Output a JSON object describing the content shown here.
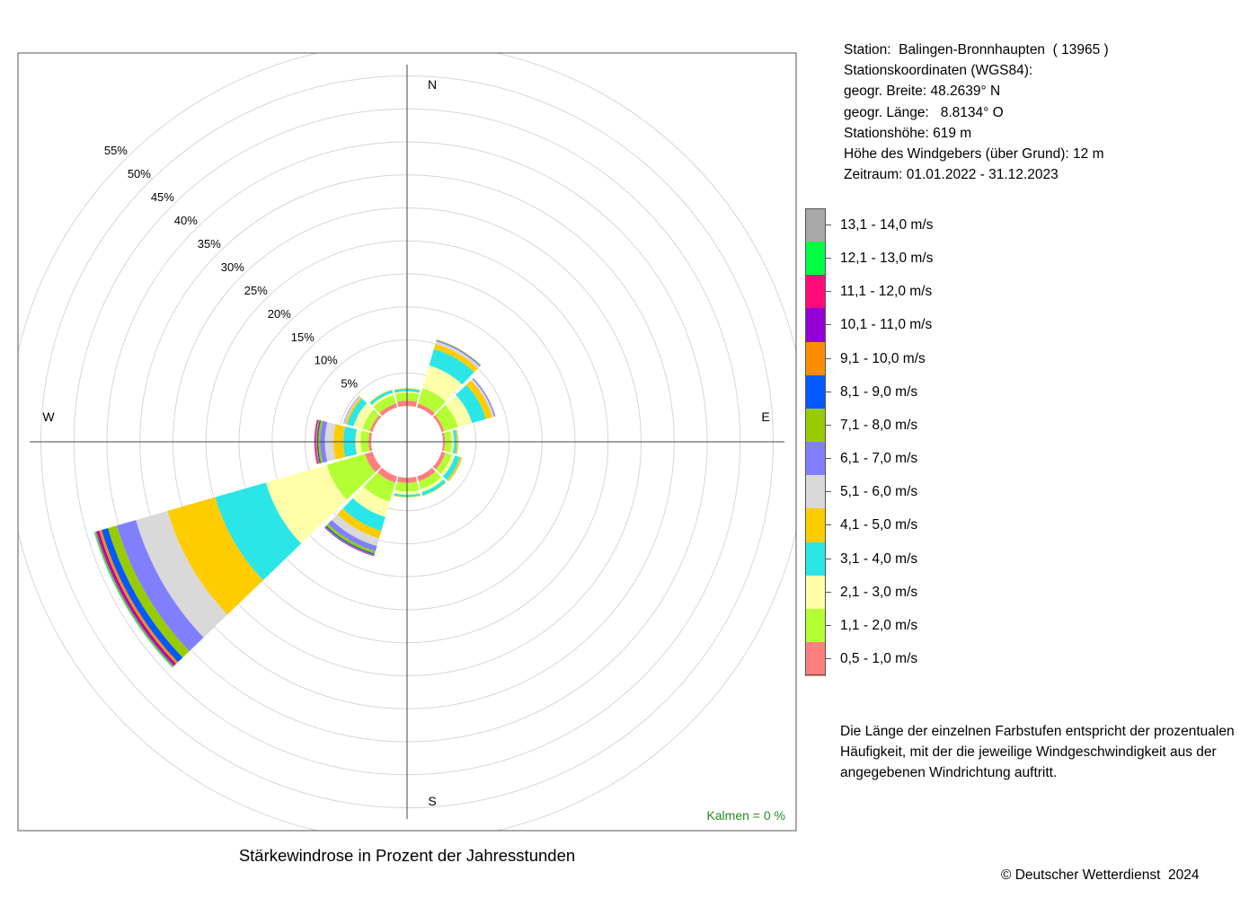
{
  "title": "Stärkewindrose in Prozent der Jahresstunden",
  "station_info": [
    "Station:  Balingen-Bronnhaupten  ( 13965 )",
    "Stationskoordinaten (WGS84):",
    "geogr. Breite: 48.2639° N",
    "geogr. Länge:   8.8134° O",
    "Stationshöhe: 619 m",
    "Höhe des Windgebers (über Grund): 12 m",
    "Zeitraum: 01.01.2022 - 31.12.2023"
  ],
  "note": "Die Länge der einzelnen Farbstufen entspricht der prozentualen Häufigkeit, mit der die jeweilige Windgeschwindigkeit aus der angegebenen Windrichtung auftritt.",
  "copyright": "© Deutscher Wetterdienst  2024",
  "calm_label": "Kalmen  =  0 %",
  "calm_color": "#228b22",
  "legend": [
    {
      "label": "13,1 - 14,0 m/s",
      "color": "#a8a8a8"
    },
    {
      "label": "12,1 - 13,0 m/s",
      "color": "#00ff40"
    },
    {
      "label": "11,1 - 12,0 m/s",
      "color": "#ff0a78"
    },
    {
      "label": "10,1 - 11,0 m/s",
      "color": "#9400d3"
    },
    {
      "label": "9,1 - 10,0 m/s",
      "color": "#ff8c00"
    },
    {
      "label": "8,1 - 9,0 m/s",
      "color": "#005aff"
    },
    {
      "label": "7,1 - 8,0 m/s",
      "color": "#99cc00"
    },
    {
      "label": "6,1 - 7,0 m/s",
      "color": "#8080ff"
    },
    {
      "label": "5,1 - 6,0 m/s",
      "color": "#d9d9d9"
    },
    {
      "label": "4,1 - 5,0 m/s",
      "color": "#ffcc00"
    },
    {
      "label": "3,1 - 4,0 m/s",
      "color": "#2ae6e6"
    },
    {
      "label": "2,1 - 3,0 m/s",
      "color": "#ffffaa"
    },
    {
      "label": "1,1 - 2,0 m/s",
      "color": "#b3ff33"
    },
    {
      "label": "0,5 - 1,0 m/s",
      "color": "#ff7f7f"
    }
  ],
  "chart_data": {
    "type": "wind-rose",
    "title": "Stärkewindrose in Prozent der Jahresstunden",
    "unit": "%",
    "radial_max": 55,
    "ring_step": 5,
    "ring_labels": [
      "5%",
      "10%",
      "15%",
      "20%",
      "25%",
      "30%",
      "35%",
      "40%",
      "45%",
      "50%",
      "55%"
    ],
    "cardinal_labels": {
      "N": "N",
      "E": "E",
      "S": "S",
      "W": "W"
    },
    "calm_percent": 0,
    "speed_classes": [
      "0,5 - 1,0 m/s",
      "1,1 - 2,0 m/s",
      "2,1 - 3,0 m/s",
      "3,1 - 4,0 m/s",
      "4,1 - 5,0 m/s",
      "5,1 - 6,0 m/s",
      "6,1 - 7,0 m/s",
      "7,1 - 8,0 m/s",
      "8,1 - 9,0 m/s",
      "9,1 - 10,0 m/s",
      "10,1 - 11,0 m/s",
      "11,1 - 12,0 m/s",
      "12,1 - 13,0 m/s",
      "13,1 - 14,0 m/s"
    ],
    "sector_width_deg": 30,
    "sectors": [
      {
        "direction": 0,
        "values": [
          0.8,
          1.2,
          0.2,
          0.4,
          0.1,
          0,
          0,
          0,
          0,
          0,
          0,
          0,
          0,
          0
        ]
      },
      {
        "direction": 30,
        "values": [
          0.6,
          2.4,
          3.6,
          2.6,
          0.8,
          0.4,
          0.2,
          0.1,
          0,
          0,
          0,
          0,
          0,
          0
        ]
      },
      {
        "direction": 60,
        "values": [
          0.4,
          2.2,
          2.2,
          2.2,
          1.0,
          0.3,
          0.2,
          0,
          0,
          0,
          0,
          0,
          0,
          0
        ]
      },
      {
        "direction": 90,
        "values": [
          0.3,
          1.0,
          0.4,
          0.4,
          0.2,
          0.1,
          0,
          0,
          0,
          0,
          0,
          0,
          0,
          0
        ]
      },
      {
        "direction": 120,
        "values": [
          0.6,
          1.0,
          0.5,
          0.8,
          0.3,
          0.1,
          0,
          0,
          0,
          0,
          0,
          0,
          0,
          0
        ]
      },
      {
        "direction": 150,
        "values": [
          0.8,
          1.2,
          0.5,
          0.5,
          0.1,
          0,
          0,
          0,
          0,
          0,
          0,
          0,
          0,
          0
        ]
      },
      {
        "direction": 180,
        "values": [
          0.8,
          1.3,
          0.5,
          0.3,
          0.1,
          0,
          0,
          0,
          0,
          0,
          0,
          0,
          0,
          0
        ]
      },
      {
        "direction": 210,
        "values": [
          1.0,
          3.0,
          2.4,
          2.2,
          1.2,
          1.2,
          0.8,
          0.4,
          0.2,
          0.1,
          0.1,
          0,
          0,
          0
        ]
      },
      {
        "direction": 240,
        "values": [
          1.2,
          6.0,
          9.6,
          8.0,
          7.5,
          5.0,
          3.0,
          1.4,
          1.0,
          0.4,
          0.3,
          0.2,
          0.2,
          0.1
        ]
      },
      {
        "direction": 270,
        "values": [
          0.4,
          1.2,
          0.8,
          1.8,
          1.5,
          1.3,
          0.7,
          0.3,
          0.2,
          0.2,
          0.1,
          0.1,
          0,
          0
        ]
      },
      {
        "direction": 300,
        "values": [
          0.4,
          1.2,
          1.4,
          1.0,
          0.3,
          0.2,
          0.1,
          0,
          0,
          0,
          0,
          0,
          0,
          0
        ]
      },
      {
        "direction": 330,
        "values": [
          0.6,
          1.3,
          0.4,
          0.4,
          0.1,
          0,
          0,
          0,
          0,
          0,
          0,
          0,
          0,
          0
        ]
      }
    ]
  }
}
